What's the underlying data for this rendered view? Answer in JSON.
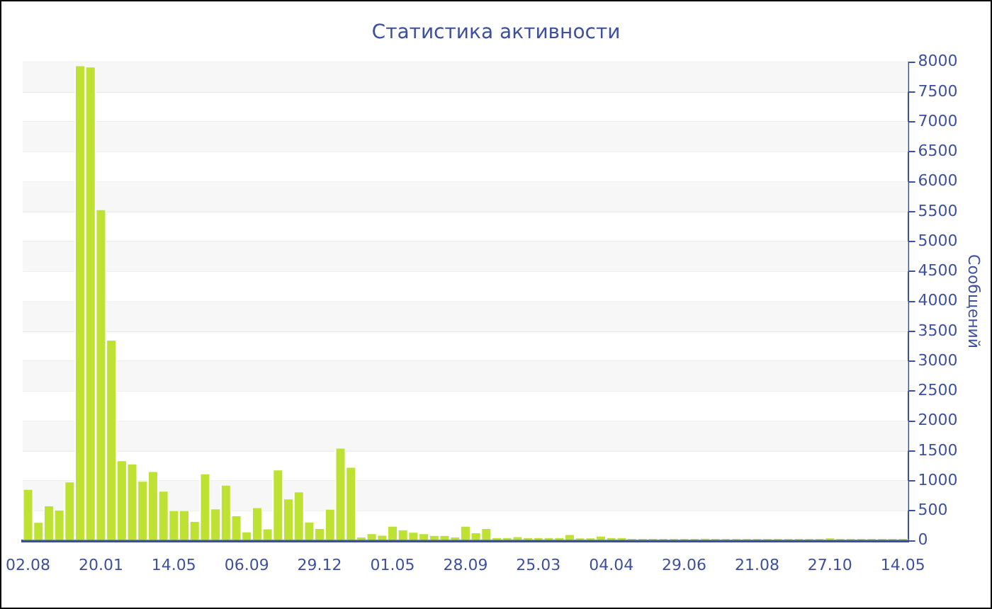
{
  "chart_data": {
    "type": "bar",
    "title": "Статистика активности",
    "ylabel": "Сообщений",
    "categories": [
      "02.08",
      null,
      null,
      null,
      null,
      null,
      null,
      "20.01",
      null,
      null,
      null,
      null,
      null,
      null,
      "14.05",
      null,
      null,
      null,
      null,
      null,
      null,
      "06.09",
      null,
      null,
      null,
      null,
      null,
      null,
      "29.12",
      null,
      null,
      null,
      null,
      null,
      null,
      "01.05",
      null,
      null,
      null,
      null,
      null,
      null,
      "28.09",
      null,
      null,
      null,
      null,
      null,
      null,
      "25.03",
      null,
      null,
      null,
      null,
      null,
      null,
      "04.04",
      null,
      null,
      null,
      null,
      null,
      null,
      "29.06",
      null,
      null,
      null,
      null,
      null,
      null,
      "21.08",
      null,
      null,
      null,
      null,
      null,
      null,
      "27.10",
      null,
      null,
      null,
      null,
      null,
      null,
      "14.05"
    ],
    "values": [
      850,
      300,
      575,
      505,
      975,
      7930,
      7910,
      5525,
      3345,
      1330,
      1275,
      985,
      1150,
      820,
      495,
      495,
      315,
      1110,
      525,
      920,
      410,
      140,
      545,
      190,
      1175,
      690,
      810,
      305,
      195,
      520,
      1540,
      1220,
      55,
      110,
      85,
      235,
      175,
      135,
      110,
      80,
      80,
      55,
      235,
      125,
      195,
      45,
      45,
      60,
      45,
      45,
      45,
      45,
      95,
      40,
      40,
      70,
      45,
      45,
      30,
      30,
      30,
      30,
      30,
      30,
      30,
      35,
      30,
      30,
      30,
      30,
      30,
      30,
      30,
      30,
      30,
      30,
      30,
      40,
      30,
      30,
      30,
      30,
      30,
      30,
      30
    ],
    "color": "#bde233",
    "ylim": [
      0,
      8000
    ],
    "yticks": [
      0,
      500,
      1000,
      1500,
      2000,
      2500,
      3000,
      3500,
      4000,
      4500,
      5000,
      5500,
      6000,
      6500,
      7000,
      7500,
      8000
    ],
    "grid": "y"
  }
}
